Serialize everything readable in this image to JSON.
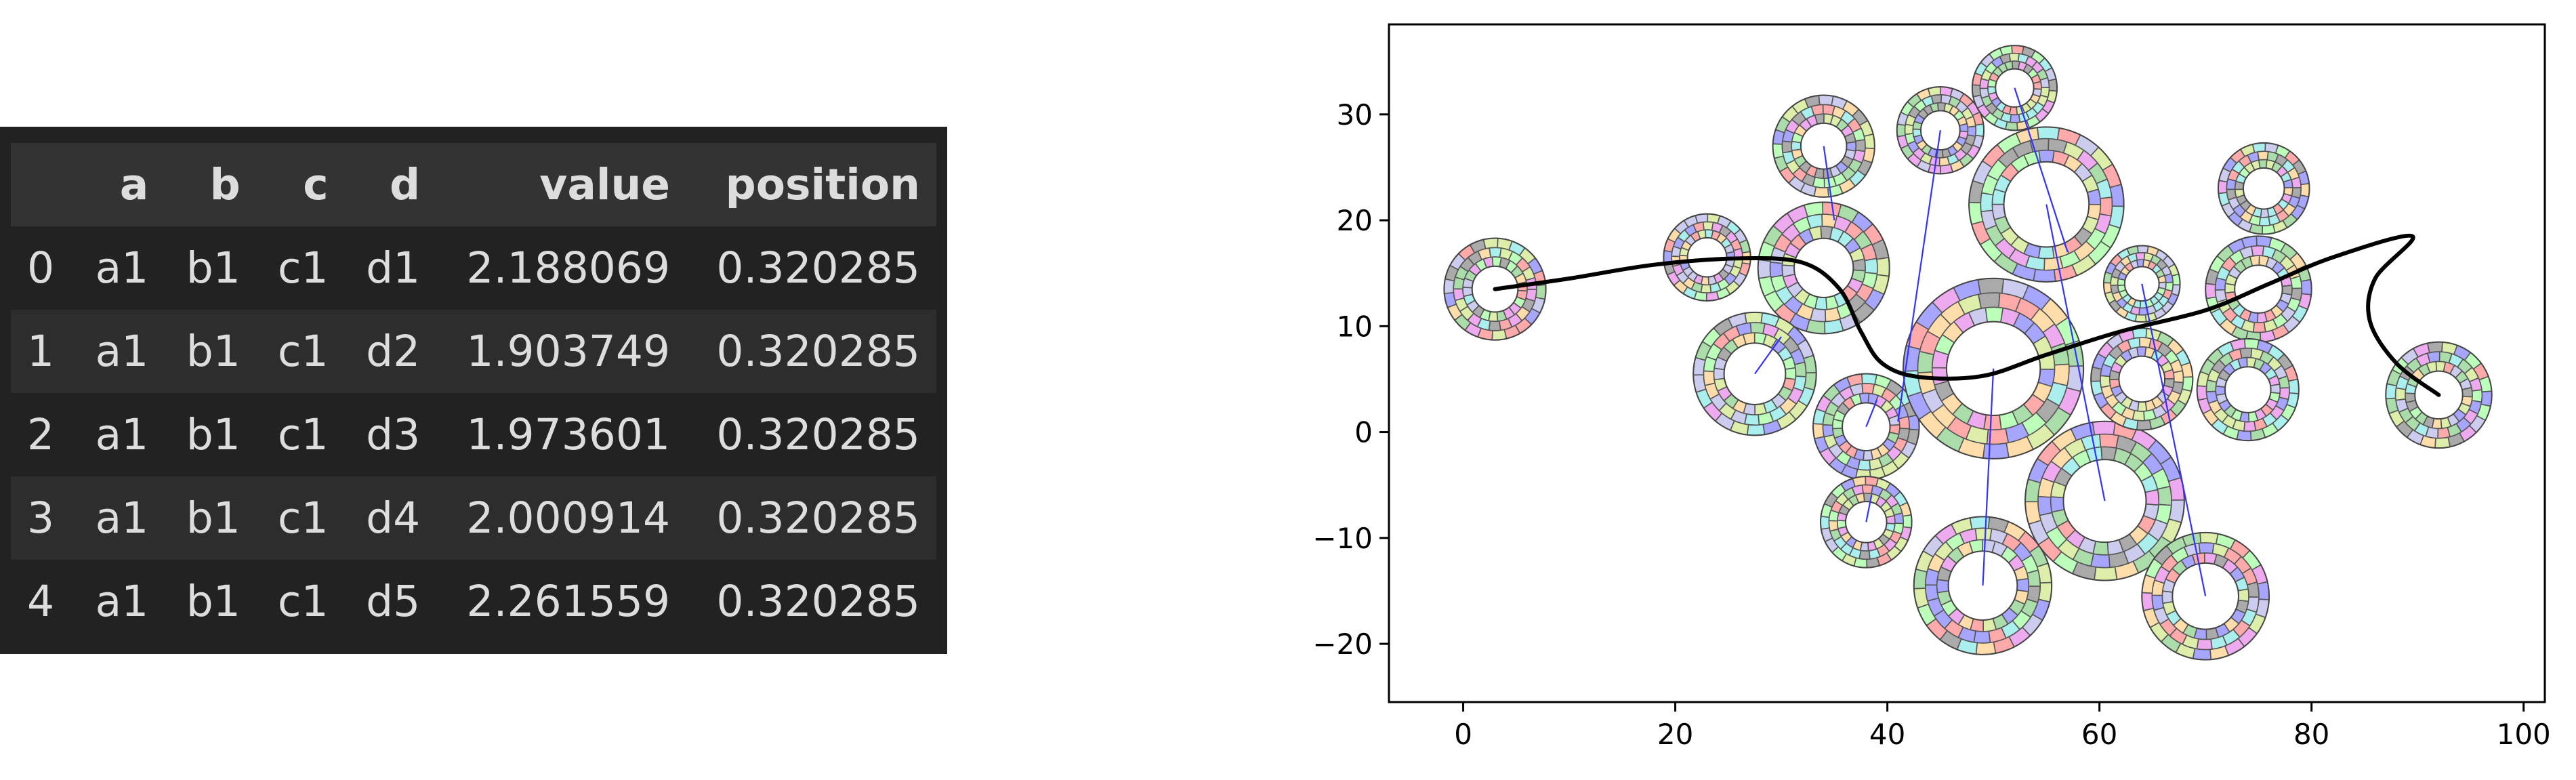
{
  "table": {
    "columns": [
      "",
      "a",
      "b",
      "c",
      "d",
      "value",
      "position"
    ],
    "rows": [
      [
        "0",
        "a1",
        "b1",
        "c1",
        "d1",
        "2.188069",
        "0.320285"
      ],
      [
        "1",
        "a1",
        "b1",
        "c1",
        "d2",
        "1.903749",
        "0.320285"
      ],
      [
        "2",
        "a1",
        "b1",
        "c1",
        "d3",
        "1.973601",
        "0.320285"
      ],
      [
        "3",
        "a1",
        "b1",
        "c1",
        "d4",
        "2.000914",
        "0.320285"
      ],
      [
        "4",
        "a1",
        "b1",
        "c1",
        "d5",
        "2.261559",
        "0.320285"
      ]
    ]
  },
  "chart_data": {
    "type": "scatter",
    "title": "",
    "xlabel": "",
    "ylabel": "",
    "xlim": [
      -7,
      102
    ],
    "ylim": [
      -25.5,
      38.5
    ],
    "xticks": [
      0,
      20,
      40,
      60,
      80,
      100
    ],
    "yticks": [
      -20,
      -10,
      0,
      10,
      20,
      30
    ],
    "grid": false,
    "legend": "none",
    "markers": [
      {
        "x": 3,
        "y": 13.5,
        "r": 4.8,
        "ring_ratio": 0.45
      },
      {
        "x": 23,
        "y": 16.5,
        "r": 4.1,
        "ring_ratio": 0.45
      },
      {
        "x": 34,
        "y": 27,
        "r": 4.8,
        "ring_ratio": 0.45
      },
      {
        "x": 34,
        "y": 15.5,
        "r": 6.2,
        "ring_ratio": 0.45
      },
      {
        "x": 27.5,
        "y": 5.5,
        "r": 5.8,
        "ring_ratio": 0.5
      },
      {
        "x": 38,
        "y": 0.5,
        "r": 5.0,
        "ring_ratio": 0.45
      },
      {
        "x": 38,
        "y": -8.5,
        "r": 4.3,
        "ring_ratio": 0.45
      },
      {
        "x": 45,
        "y": 28.5,
        "r": 4.1,
        "ring_ratio": 0.45
      },
      {
        "x": 52,
        "y": 32.5,
        "r": 4.0,
        "ring_ratio": 0.45
      },
      {
        "x": 55,
        "y": 21.5,
        "r": 7.3,
        "ring_ratio": 0.55
      },
      {
        "x": 50,
        "y": 6,
        "r": 8.5,
        "ring_ratio": 0.52
      },
      {
        "x": 49,
        "y": -14.5,
        "r": 6.5,
        "ring_ratio": 0.5
      },
      {
        "x": 60.5,
        "y": -6.5,
        "r": 7.5,
        "ring_ratio": 0.52
      },
      {
        "x": 64,
        "y": 14,
        "r": 3.6,
        "ring_ratio": 0.45
      },
      {
        "x": 64,
        "y": 5,
        "r": 4.8,
        "ring_ratio": 0.45
      },
      {
        "x": 70,
        "y": -15.5,
        "r": 6.0,
        "ring_ratio": 0.52
      },
      {
        "x": 75.5,
        "y": 23,
        "r": 4.3,
        "ring_ratio": 0.45
      },
      {
        "x": 75,
        "y": 13.5,
        "r": 5.0,
        "ring_ratio": 0.45
      },
      {
        "x": 74,
        "y": 4,
        "r": 4.8,
        "ring_ratio": 0.45
      },
      {
        "x": 92,
        "y": 3.5,
        "r": 5.0,
        "ring_ratio": 0.45
      }
    ],
    "black_line": [
      [
        3,
        13.5
      ],
      [
        10,
        14.5
      ],
      [
        18,
        15.8
      ],
      [
        26,
        16.4
      ],
      [
        32,
        16.0
      ],
      [
        35.5,
        13.5
      ],
      [
        37.5,
        9.5
      ],
      [
        39.5,
        6.5
      ],
      [
        43,
        5.2
      ],
      [
        49,
        5.3
      ],
      [
        55,
        7.3
      ],
      [
        62,
        9.5
      ],
      [
        70,
        11.5
      ],
      [
        76,
        14
      ],
      [
        82,
        16.5
      ],
      [
        89.5,
        18.5
      ],
      [
        86,
        14.5
      ],
      [
        85.5,
        10.5
      ],
      [
        88,
        6.5
      ],
      [
        92,
        3.5
      ]
    ],
    "blue_lines": [
      [
        [
          45,
          28.5
        ],
        [
          41,
          1
        ]
      ],
      [
        [
          52,
          32.5
        ],
        [
          57,
          17
        ]
      ],
      [
        [
          55,
          21.5
        ],
        [
          60.5,
          -6.5
        ]
      ],
      [
        [
          50,
          6
        ],
        [
          49,
          -14.5
        ]
      ],
      [
        [
          64,
          14
        ],
        [
          70,
          -15.5
        ]
      ],
      [
        [
          34,
          27
        ],
        [
          35,
          20
        ]
      ],
      [
        [
          27.5,
          5.5
        ],
        [
          30,
          9
        ]
      ],
      [
        [
          38,
          0.5
        ],
        [
          39,
          3
        ]
      ],
      [
        [
          38,
          -8.5
        ],
        [
          38.5,
          -6
        ]
      ]
    ],
    "colors": {
      "black_line": "#000000",
      "blue_lines": "#3333ff",
      "segment_edge": "#555555",
      "segment_palette": [
        "#a6a6ff",
        "#aaddaa",
        "#ffaaaa",
        "#aaaaaa",
        "#ddeeaa",
        "#ffddaa",
        "#ccccee",
        "#bbffbb",
        "#eeaaee",
        "#aaeeee"
      ]
    }
  }
}
